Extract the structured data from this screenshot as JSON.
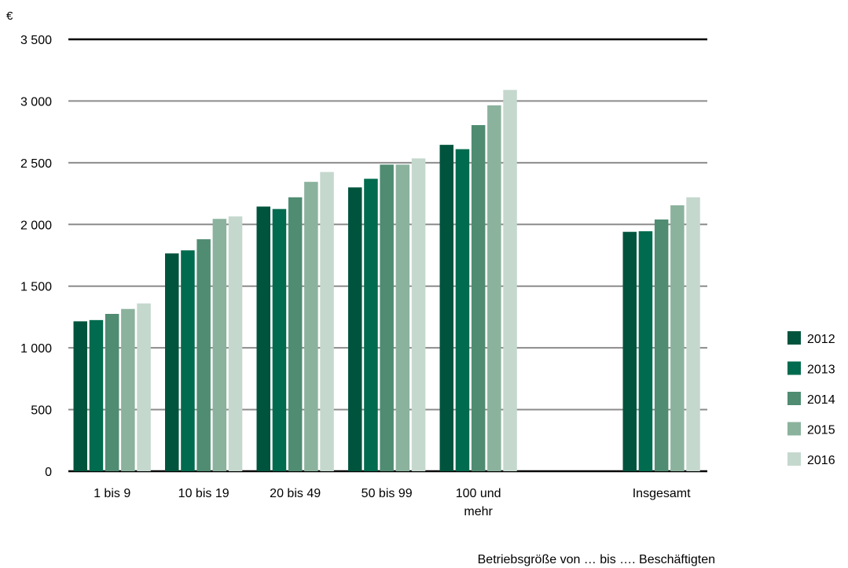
{
  "chart_data": {
    "type": "bar",
    "unit_label": "€",
    "xlabel": "Betriebsgröße von … bis …. Beschäftigten",
    "ylabel": "",
    "ylim": [
      0,
      3500
    ],
    "y_ticks": [
      0,
      500,
      1000,
      1500,
      2000,
      2500,
      3000,
      3500
    ],
    "y_tick_labels": [
      "0",
      "500",
      "1 000",
      "1 500",
      "2 000",
      "2 500",
      "3 000",
      "3 500"
    ],
    "grid": true,
    "legend_position": "right",
    "categories": [
      [
        "1 bis 9"
      ],
      [
        "10 bis 19"
      ],
      [
        "20 bis 49"
      ],
      [
        "50 bis 99"
      ],
      [
        "100 und",
        "mehr"
      ],
      [],
      [
        "Insgesamt"
      ]
    ],
    "series": [
      {
        "name": "2012",
        "color": "#00543d",
        "values": [
          1215,
          1765,
          2145,
          2300,
          2645,
          null,
          1940
        ]
      },
      {
        "name": "2013",
        "color": "#006b4e",
        "values": [
          1225,
          1790,
          2125,
          2370,
          2610,
          null,
          1945
        ]
      },
      {
        "name": "2014",
        "color": "#4f8c72",
        "values": [
          1275,
          1880,
          2220,
          2485,
          2805,
          null,
          2040
        ]
      },
      {
        "name": "2015",
        "color": "#8bb29d",
        "values": [
          1315,
          2045,
          2345,
          2485,
          2965,
          null,
          2155
        ]
      },
      {
        "name": "2016",
        "color": "#c5d8ce",
        "values": [
          1360,
          2065,
          2425,
          2535,
          3090,
          null,
          2220
        ]
      }
    ]
  }
}
